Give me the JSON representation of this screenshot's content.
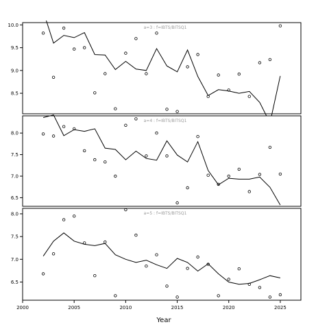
{
  "chart_data": {
    "type": "line",
    "xlabel": "Year",
    "xlim": [
      2000,
      2027
    ],
    "x_ticks": [
      2000,
      2005,
      2010,
      2015,
      2020,
      2025
    ],
    "years": [
      2002,
      2003,
      2004,
      2005,
      2006,
      2007,
      2008,
      2009,
      2010,
      2011,
      2012,
      2013,
      2014,
      2015,
      2016,
      2017,
      2018,
      2019,
      2020,
      2021,
      2022,
      2023,
      2024,
      2025
    ],
    "panels": [
      {
        "title": "a=3 : f=IBTS/BITSQ1",
        "ylim": [
          8.05,
          10.05
        ],
        "y_ticks": [
          8.5,
          9.0,
          9.5,
          10.0
        ],
        "y_tick_labels": [
          "8.5",
          "9.0",
          "9.5",
          "10.0"
        ],
        "line": [
          10.3,
          9.6,
          9.77,
          9.72,
          9.83,
          9.35,
          9.34,
          9.02,
          9.2,
          9.03,
          9.0,
          9.48,
          9.1,
          8.97,
          9.45,
          8.87,
          8.45,
          8.58,
          8.55,
          8.5,
          8.54,
          8.3,
          7.85,
          8.88
        ],
        "points": [
          9.82,
          8.85,
          9.93,
          9.47,
          9.5,
          8.51,
          8.93,
          8.16,
          9.38,
          9.7,
          8.93,
          9.82,
          8.15,
          8.1,
          9.08,
          9.35,
          8.43,
          8.9,
          8.57,
          8.92,
          8.43,
          9.17,
          9.24,
          9.98
        ]
      },
      {
        "title": "a=4 : f=IBTS/BITSQ1",
        "ylim": [
          6.3,
          8.4
        ],
        "y_ticks": [
          6.5,
          7.0,
          7.5,
          8.0
        ],
        "y_tick_labels": [
          "6.5",
          "7.0",
          "7.5",
          "8.0"
        ],
        "line": [
          8.36,
          8.42,
          7.94,
          8.08,
          8.04,
          8.1,
          7.65,
          7.62,
          7.38,
          7.58,
          7.41,
          7.37,
          7.82,
          7.49,
          7.33,
          7.8,
          7.13,
          6.8,
          6.95,
          6.93,
          6.93,
          6.98,
          6.74,
          6.33
        ],
        "points": [
          7.98,
          7.93,
          8.15,
          8.1,
          7.59,
          7.38,
          7.33,
          7.0,
          8.18,
          8.33,
          7.47,
          8.0,
          7.47,
          6.38,
          6.73,
          7.92,
          7.02,
          6.81,
          7.0,
          7.16,
          6.64,
          7.04,
          7.67,
          7.05
        ]
      },
      {
        "title": "a=5 : f=IBTS/BITSQ1",
        "ylim": [
          6.1,
          8.12
        ],
        "y_ticks": [
          6.5,
          7.0,
          7.5,
          8.0
        ],
        "y_tick_labels": [
          "6.5",
          "7.0",
          "7.5",
          "8.0"
        ],
        "line": [
          7.07,
          7.4,
          7.58,
          7.4,
          7.33,
          7.3,
          7.35,
          7.1,
          7.0,
          6.93,
          6.98,
          6.88,
          6.8,
          7.02,
          6.93,
          6.74,
          6.9,
          6.68,
          6.5,
          6.45,
          6.47,
          6.55,
          6.64,
          6.59
        ],
        "points": [
          6.68,
          7.12,
          7.87,
          7.95,
          7.36,
          6.64,
          7.38,
          6.2,
          8.09,
          7.53,
          6.85,
          7.1,
          6.41,
          6.17,
          6.8,
          7.05,
          6.89,
          6.2,
          6.56,
          6.79,
          6.45,
          6.38,
          6.17,
          6.22
        ]
      }
    ]
  }
}
